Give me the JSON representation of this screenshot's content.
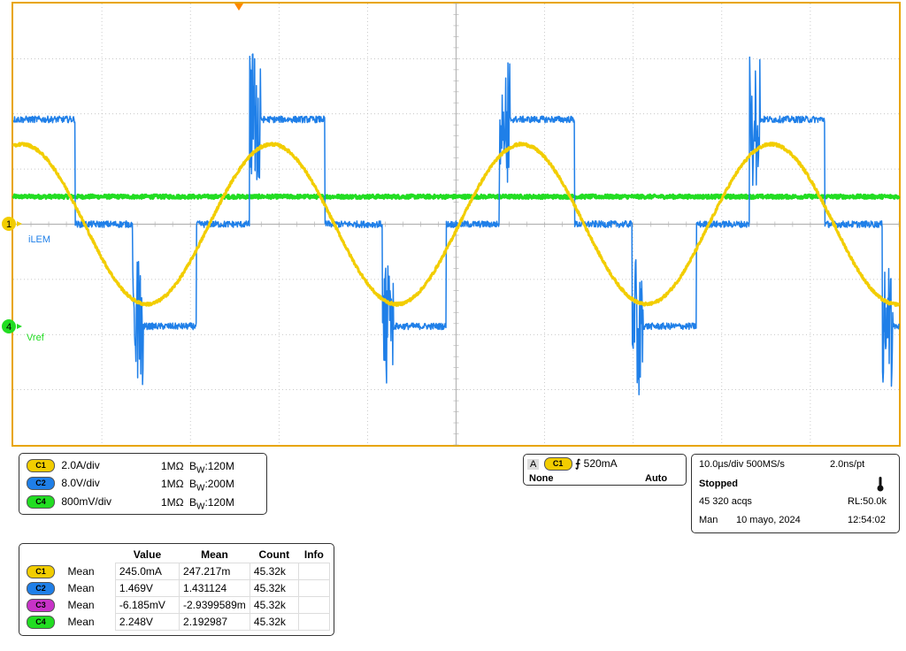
{
  "colors": {
    "background": "#ffffff",
    "border": "#e8a500",
    "grid": "#b5b5b5",
    "ch1": "#f2cd00",
    "ch2": "#1f7fe8",
    "ch3": "#c832c8",
    "ch4": "#22dd22"
  },
  "markers": {
    "ch1_marker": "1",
    "ch1_label": "iLEM",
    "ch4_marker": "4",
    "ch4_label": "Vref"
  },
  "channels": [
    {
      "badge": "C1",
      "scale": "2.0A/div",
      "impedance": "1MΩ",
      "bw_prefix": "B",
      "bw_sub": "W",
      "bw_value": ":120M",
      "color": "#f2cd00"
    },
    {
      "badge": "C2",
      "scale": "8.0V/div",
      "impedance": "1MΩ",
      "bw_prefix": "B",
      "bw_sub": "W",
      "bw_value": ":200M",
      "color": "#1f7fe8"
    },
    {
      "badge": "C4",
      "scale": "800mV/div",
      "impedance": "1MΩ",
      "bw_prefix": "B",
      "bw_sub": "W",
      "bw_value": ":120M",
      "color": "#22dd22"
    }
  ],
  "trigger": {
    "mode_letter": "A",
    "source": "C1",
    "slope_symbol": "⨍",
    "level": "520mA",
    "coupling": "None",
    "sweep": "Auto"
  },
  "acquisition": {
    "timebase": "10.0µs/div",
    "sample_rate": "500MS/s",
    "resolution": "2.0ns/pt",
    "state": "Stopped",
    "acqs": "45 320 acqs",
    "record_length": "RL:50.0k",
    "day": "Man",
    "date": "10 mayo, 2024",
    "time": "12:54:02"
  },
  "measurements": {
    "headers": [
      "Value",
      "Mean",
      "Count",
      "Info"
    ],
    "rows": [
      {
        "badge": "C1",
        "color": "#f2cd00",
        "type": "Mean",
        "value": "245.0mA",
        "mean": "247.217m",
        "count": "45.32k",
        "info": ""
      },
      {
        "badge": "C2",
        "color": "#1f7fe8",
        "type": "Mean",
        "value": "1.469V",
        "mean": "1.431124",
        "count": "45.32k",
        "info": ""
      },
      {
        "badge": "C3",
        "color": "#c832c8",
        "type": "Mean",
        "value": "-6.185mV",
        "mean": "-2.9399589m",
        "count": "45.32k",
        "info": ""
      },
      {
        "badge": "C4",
        "color": "#22dd22",
        "type": "Mean",
        "value": "2.248V",
        "mean": "2.192987",
        "count": "45.32k",
        "info": ""
      }
    ]
  },
  "chart_data": {
    "type": "line",
    "x_unit": "µs",
    "xlim": [
      -50,
      50
    ],
    "divisions": {
      "x": 10,
      "y": 8
    },
    "grid": true,
    "series": [
      {
        "name": "iLEM",
        "channel": "C1",
        "shape": "sine",
        "period_us": 28.2,
        "amplitude_div": 1.45,
        "offset_div": 0.0,
        "first_peak_us": -49.0,
        "color": "#f2cd00"
      },
      {
        "name": "C2",
        "channel": "C2",
        "shape": "square_with_dead_time",
        "period_us": 28.2,
        "levels_div": [
          1.9,
          0.0,
          -1.85,
          0.0
        ],
        "segment_starts_us": [
          -51.5,
          -43.0,
          -36.5,
          -29.3
        ],
        "color": "#1f7fe8"
      },
      {
        "name": "Vref",
        "channel": "C4",
        "shape": "flat",
        "level_div": 0.5,
        "color": "#22dd22"
      }
    ]
  }
}
